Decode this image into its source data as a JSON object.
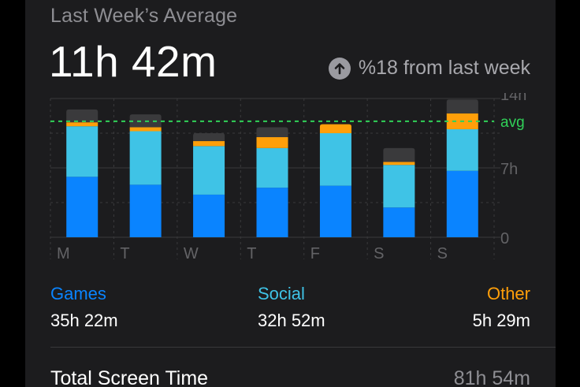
{
  "header": {
    "subtitle": "Last Week’s Average",
    "average": "11h 42m",
    "change_text": "%18 from last week",
    "change_icon": "arrow-up-circle-icon"
  },
  "colors": {
    "games": "#0a84ff",
    "social": "#3fc3e6",
    "other": "#ff9f0a",
    "remainder": "#3a3a3c",
    "avg_line": "#30d158",
    "grid": "#3a3a3c",
    "axis_text": "#636366"
  },
  "chart_data": {
    "type": "bar",
    "stacked": true,
    "categories": [
      "M",
      "T",
      "W",
      "T",
      "F",
      "S",
      "S"
    ],
    "series": [
      {
        "name": "Games",
        "values": [
          6.1,
          5.3,
          4.3,
          5.0,
          5.2,
          3.0,
          6.7
        ]
      },
      {
        "name": "Social",
        "values": [
          5.1,
          5.4,
          4.9,
          4.0,
          5.3,
          4.3,
          4.2
        ]
      },
      {
        "name": "Other",
        "values": [
          0.4,
          0.4,
          0.5,
          1.1,
          0.9,
          0.3,
          1.6
        ]
      },
      {
        "values": [
          1.3,
          1.3,
          0.8,
          1.0,
          0.0,
          1.4,
          1.4
        ]
      }
    ],
    "average_line": {
      "value": 11.7,
      "label": "avg"
    },
    "y_ticks": [
      {
        "value": 14,
        "label": "14h"
      },
      {
        "value": 7,
        "label": "7h"
      },
      {
        "value": 0,
        "label": "0"
      }
    ],
    "ylim": [
      0,
      14
    ],
    "grid": true
  },
  "legend": [
    {
      "name": "Games",
      "value": "35h 22m",
      "color": "#0a84ff"
    },
    {
      "name": "Social",
      "value": "32h 52m",
      "color": "#3fc3e6"
    },
    {
      "name": "Other",
      "value": "5h 29m",
      "color": "#ff9f0a"
    }
  ],
  "total": {
    "label": "Total Screen Time",
    "value": "81h 54m"
  }
}
